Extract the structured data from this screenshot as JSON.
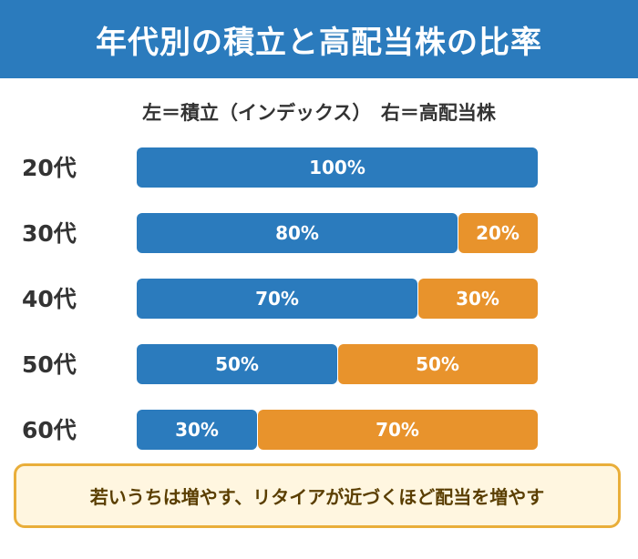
{
  "header": {
    "title": "年代別の積立と高配当株の比率"
  },
  "subtitle": {
    "text": "左＝積立（インデックス）　右＝高配当株"
  },
  "colors": {
    "header": "#2b7bbd",
    "left": "#2b7bbd",
    "right": "#e8932c",
    "note_border": "#e9ae3a",
    "note_bg": "#fff6e0"
  },
  "chart_data": {
    "type": "bar",
    "orientation": "horizontal",
    "stacked": true,
    "categories": [
      "20代",
      "30代",
      "40代",
      "50代",
      "60代"
    ],
    "series": [
      {
        "values": [
          100,
          80,
          70,
          50,
          30
        ],
        "labels": [
          "100%",
          "80%",
          "70%",
          "50%",
          "30%"
        ]
      },
      {
        "values": [
          0,
          20,
          30,
          50,
          70
        ],
        "labels": [
          "",
          "20%",
          "30%",
          "50%",
          "70%"
        ]
      }
    ],
    "xlim": [
      0,
      100
    ],
    "grid": false
  },
  "note": {
    "text": "若いうちは増やす、リタイアが近づくほど配当を増やす"
  }
}
